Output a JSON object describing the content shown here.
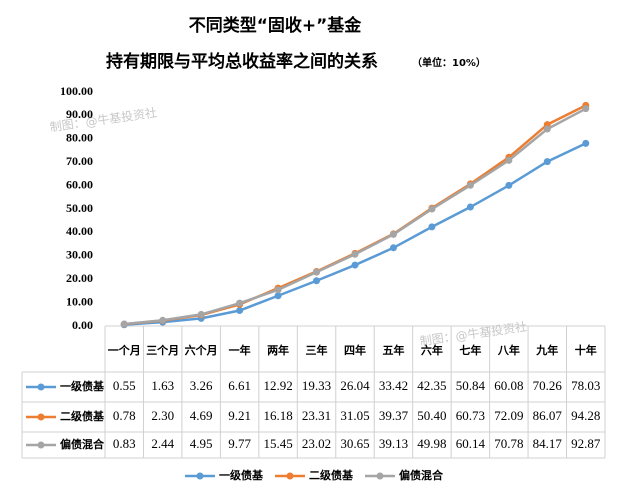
{
  "chart_data": {
    "type": "line",
    "title": "不同类型“固收+”基金",
    "subtitle": "持有期限与平均总收益率之间的关系",
    "unit_note": "（单位：10%）",
    "watermark": "制图：@牛基投资社",
    "categories": [
      "一个月",
      "三个月",
      "六个月",
      "一年",
      "两年",
      "三年",
      "四年",
      "五年",
      "六年",
      "七年",
      "八年",
      "九年",
      "十年"
    ],
    "series": [
      {
        "name": "一级债基",
        "color": "#5b9bd5",
        "values": [
          0.55,
          1.63,
          3.26,
          6.61,
          12.92,
          19.33,
          26.04,
          33.42,
          42.35,
          50.84,
          60.08,
          70.26,
          78.03
        ],
        "value_labels": [
          "0.55",
          "1.63",
          "3.26",
          "6.61",
          "12.92",
          "19.33",
          "26.04",
          "33.42",
          "42.35",
          "50.84",
          "60.08",
          "70.26",
          "78.03"
        ]
      },
      {
        "name": "二级债基",
        "color": "#ed7d31",
        "values": [
          0.78,
          2.3,
          4.69,
          9.21,
          16.18,
          23.31,
          31.05,
          39.37,
          50.4,
          60.73,
          72.09,
          86.07,
          94.28
        ],
        "value_labels": [
          "0.78",
          "2.30",
          "4.69",
          "9.21",
          "16.18",
          "23.31",
          "31.05",
          "39.37",
          "50.40",
          "60.73",
          "72.09",
          "86.07",
          "94.28"
        ]
      },
      {
        "name": "偏债混合",
        "color": "#a5a5a5",
        "values": [
          0.83,
          2.44,
          4.95,
          9.77,
          15.45,
          23.02,
          30.65,
          39.13,
          49.98,
          60.14,
          70.78,
          84.17,
          92.87
        ],
        "value_labels": [
          "0.83",
          "2.44",
          "4.95",
          "9.77",
          "15.45",
          "23.02",
          "30.65",
          "39.13",
          "49.98",
          "60.14",
          "70.78",
          "84.17",
          "92.87"
        ]
      }
    ],
    "ylim": [
      0,
      100
    ],
    "yticks": [
      {
        "value": 0,
        "label": "0.00"
      },
      {
        "value": 10,
        "label": "10.00"
      },
      {
        "value": 20,
        "label": "20.00"
      },
      {
        "value": 30,
        "label": "30.00"
      },
      {
        "value": 40,
        "label": "40.00"
      },
      {
        "value": 50,
        "label": "50.00"
      },
      {
        "value": 60,
        "label": "60.00"
      },
      {
        "value": 70,
        "label": "70.00"
      },
      {
        "value": 80,
        "label": "80.00"
      },
      {
        "value": 90,
        "label": "90.00"
      },
      {
        "value": 100,
        "label": "100.00"
      }
    ],
    "grid": false
  }
}
